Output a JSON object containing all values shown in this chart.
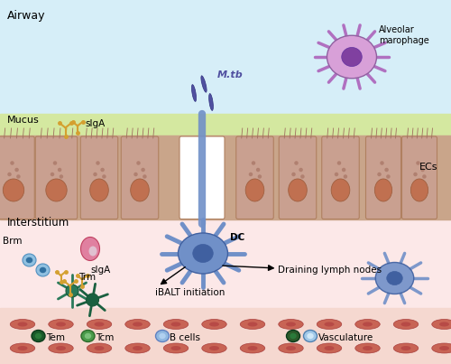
{
  "bg_color": "#ffffff",
  "airway_color": "#d6eef8",
  "mucus_color": "#d4e8a0",
  "epithelium_color": "#c9a58a",
  "epithelium_dark": "#b08060",
  "nucleus_color": "#c07050",
  "interstitium_color": "#fce8e8",
  "dc_color": "#7090c8",
  "dc_dark": "#4060a0",
  "alv_macro_color": "#d8a0d8",
  "brm_color": "#90c0e0",
  "trm_color": "#2a7a5a",
  "pink_cell_color": "#e080a0",
  "siga_color": "#d4a030",
  "mtb_color": "#5050a0",
  "red_cell_color": "#c05040",
  "tem_dark": "#1a5a2a",
  "tcm_color": "#4a9a4a",
  "bcell_color": "#90b8e0",
  "vasc_dark": "#2a5a2a",
  "vasc_light": "#a0c8e8",
  "labels": {
    "airway": "Airway",
    "mucus": "Mucus",
    "siga_top": "sIgA",
    "siga_bottom": "sIgA",
    "interstitium": "Interstitium",
    "ecs": "ECs",
    "dc": "DC",
    "mtb": "M.tb",
    "alv_macro": "Alveolar\nmarophage",
    "brm": "Brm",
    "trm": "Trm",
    "ibalt": "iBALT initiation",
    "drain": "Draining lymph nodes",
    "tem": "Tem",
    "tcm": "Tcm",
    "bcells": "B cells",
    "vasculature": "Vasculature"
  }
}
